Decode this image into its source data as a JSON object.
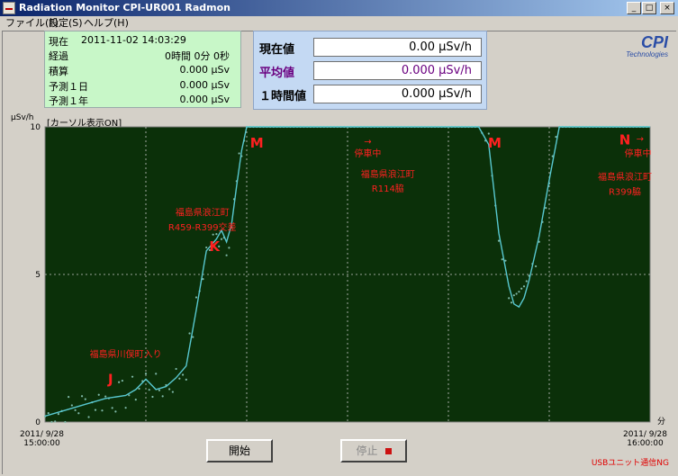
{
  "window": {
    "title": "Radiation Monitor CPI-UR001 Radmon",
    "min_glyph": "_",
    "max_glyph": "□",
    "close_glyph": "×"
  },
  "menu": {
    "file": "ファイル(F)",
    "settings": "設定(S)",
    "help": "ヘルプ(H)"
  },
  "info": {
    "current_label": "現在",
    "current_value": "2011-11-02 14:03:29",
    "elapsed_label": "経過",
    "elapsed_value": "0時間 0分 0秒",
    "total_label": "積算",
    "total_value": "0.000 μSv",
    "forecast_day_label": "予測１日",
    "forecast_day_value": "0.000 μSv",
    "forecast_year_label": "予測１年",
    "forecast_year_value": "0.000 μSv"
  },
  "readings": {
    "current_label": "現在値",
    "current_value": "0.00 μSv/h",
    "average_label": "平均値",
    "average_value": "0.000 μSv/h",
    "hourly_label": "１時間値",
    "hourly_value": "0.000 μSv/h"
  },
  "logo": {
    "mark": "CPI",
    "sub": "Technologies"
  },
  "chart_header": {
    "cursor_label": "[カーソル表示ON]",
    "y_unit": "μSv/h"
  },
  "chart_data": {
    "type": "line",
    "ylabel": "μSv/h",
    "xlabel": "分",
    "xlim": [
      0,
      60
    ],
    "ylim": [
      0,
      10
    ],
    "x_ticks": [
      0,
      10,
      20,
      30,
      40,
      50,
      60
    ],
    "y_ticks": [
      0,
      5,
      10
    ],
    "grid": true,
    "background": "#0b3009",
    "line_color": "#58c8d0",
    "series": [
      {
        "values": [
          [
            0,
            0.2
          ],
          [
            2,
            0.4
          ],
          [
            4,
            0.6
          ],
          [
            6,
            0.8
          ],
          [
            8,
            0.9
          ],
          [
            9,
            1.1
          ],
          [
            10,
            1.45
          ],
          [
            11,
            1.1
          ],
          [
            12,
            1.2
          ],
          [
            13,
            1.5
          ],
          [
            14,
            1.9
          ],
          [
            15,
            3.8
          ],
          [
            16,
            5.8
          ],
          [
            17,
            6.2
          ],
          [
            17.5,
            6.5
          ],
          [
            18,
            6.1
          ],
          [
            18.5,
            6.7
          ],
          [
            19,
            8.0
          ],
          [
            19.5,
            9.2
          ],
          [
            20,
            10.0
          ],
          [
            41,
            10.0
          ],
          [
            42,
            10.0
          ],
          [
            43,
            10.0
          ],
          [
            44,
            9.4
          ],
          [
            45,
            6.4
          ],
          [
            46,
            4.6
          ],
          [
            46.5,
            4.0
          ],
          [
            47,
            3.9
          ],
          [
            47.5,
            4.2
          ],
          [
            48,
            4.8
          ],
          [
            49,
            6.3
          ],
          [
            50,
            8.2
          ],
          [
            51,
            10.0
          ],
          [
            60,
            10.0
          ]
        ]
      }
    ],
    "annotations": [
      {
        "text": "J",
        "x": 6.5,
        "y": 1.3
      },
      {
        "text": "福島県川俣町入り",
        "x": 8.0,
        "y": 2.2
      },
      {
        "text": "K",
        "x": 16.8,
        "y": 5.8
      },
      {
        "text": "福島県浪江町",
        "x": 15.6,
        "y": 7.0
      },
      {
        "text": "R459-R399交差",
        "x": 15.6,
        "y": 6.5
      },
      {
        "text": "M",
        "x": 21.0,
        "y": 9.3
      },
      {
        "text": "→",
        "x": 32.0,
        "y": 9.4
      },
      {
        "text": "停車中",
        "x": 32.0,
        "y": 9.0
      },
      {
        "text": "福島県浪江町",
        "x": 34.0,
        "y": 8.3
      },
      {
        "text": "R114脇",
        "x": 34.0,
        "y": 7.8
      },
      {
        "text": "M",
        "x": 44.6,
        "y": 9.3
      },
      {
        "text": "N",
        "x": 57.5,
        "y": 9.4
      },
      {
        "text": "→",
        "x": 59.0,
        "y": 9.5
      },
      {
        "text": "停車中",
        "x": 58.8,
        "y": 9.0
      },
      {
        "text": "福島県浪江町",
        "x": 57.5,
        "y": 8.2
      },
      {
        "text": "R399脇",
        "x": 57.5,
        "y": 7.7
      }
    ]
  },
  "timestamps": {
    "start": "2011/ 9/28\n15:00:00",
    "end": "2011/ 9/28\n16:00:00"
  },
  "controls": {
    "start_label": "開始",
    "stop_label": "停止"
  },
  "status": "USBユニット通信NG"
}
